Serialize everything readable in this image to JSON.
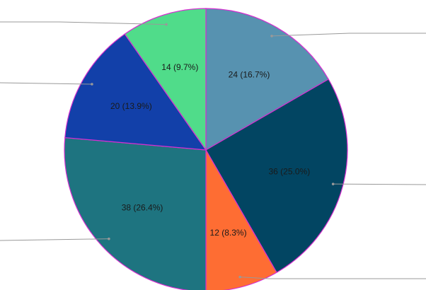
{
  "chart_data": {
    "type": "pie",
    "title": "",
    "legend": "none",
    "slices": [
      {
        "value": 24,
        "label": "24 (16.7%)",
        "color": "#5792b0"
      },
      {
        "value": 36,
        "label": "36 (25.0%)",
        "color": "#024562"
      },
      {
        "value": 12,
        "label": "12 (8.3%)",
        "color": "#fe6d33"
      },
      {
        "value": 38,
        "label": "38 (26.4%)",
        "color": "#1e7480"
      },
      {
        "value": 20,
        "label": "20 (13.9%)",
        "color": "#1240a9"
      },
      {
        "value": 14,
        "label": "14 (9.7%)",
        "color": "#50dc8a"
      }
    ],
    "slice_border_color": "#d62fd0",
    "leader_line_color": "#999999"
  }
}
